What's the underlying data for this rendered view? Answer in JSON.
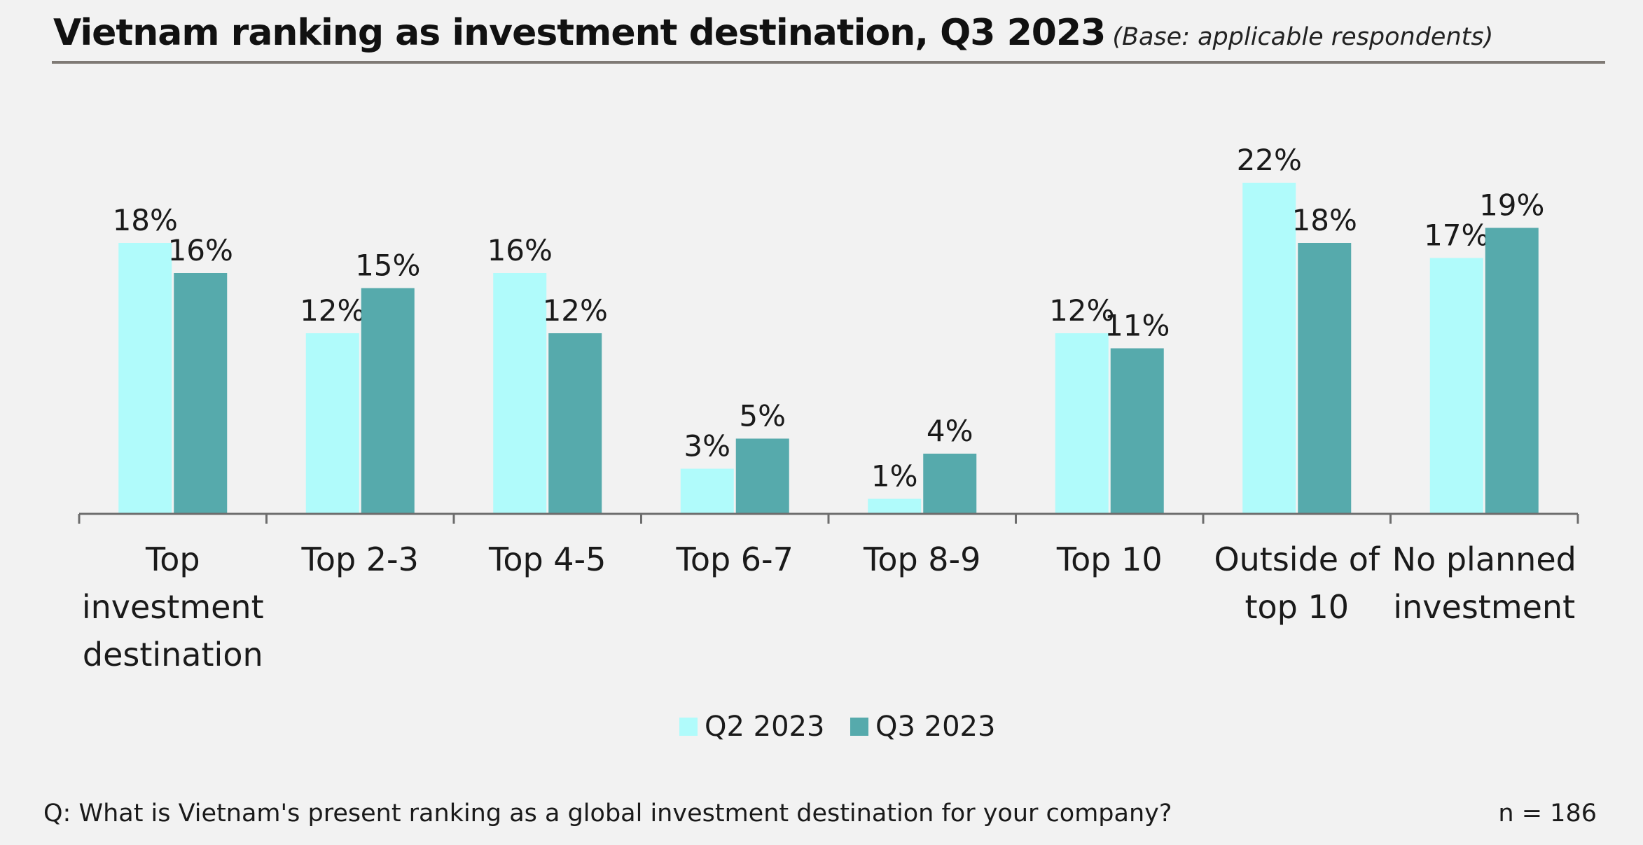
{
  "header": {
    "title": "Vietnam ranking as investment destination, Q3 2023",
    "base_note": "(Base: applicable respondents)"
  },
  "footer": {
    "question": "Q: What is Vietnam's present ranking as a global investment destination for your company?",
    "sample_size": "n = 186"
  },
  "colors": {
    "q2": "#b0fbfb",
    "q3": "#56aaac",
    "axis": "#6d6d6d",
    "rule": "#7f7a75"
  },
  "chart_data": {
    "type": "bar",
    "title": "Vietnam ranking as investment destination, Q3 2023",
    "xlabel": "",
    "ylabel": "",
    "ylim": [
      0,
      25
    ],
    "grid": false,
    "legend_position": "bottom-center",
    "categories": [
      [
        "Top",
        "investment",
        "destination"
      ],
      [
        "Top 2-3"
      ],
      [
        "Top 4-5"
      ],
      [
        "Top 6-7"
      ],
      [
        "Top 8-9"
      ],
      [
        "Top 10"
      ],
      [
        "Outside of",
        "top 10"
      ],
      [
        "No planned",
        "investment"
      ]
    ],
    "series": [
      {
        "name": "Q2 2023",
        "values": [
          18,
          12,
          16,
          3,
          1,
          12,
          22,
          17
        ],
        "labels": [
          "18%",
          "12%",
          "16%",
          "3%",
          "1%",
          "12%",
          "22%",
          "17%"
        ]
      },
      {
        "name": "Q3 2023",
        "values": [
          16,
          15,
          12,
          5,
          4,
          11,
          18,
          19
        ],
        "labels": [
          "16%",
          "15%",
          "12%",
          "5%",
          "4%",
          "11%",
          "18%",
          "19%"
        ]
      }
    ]
  }
}
